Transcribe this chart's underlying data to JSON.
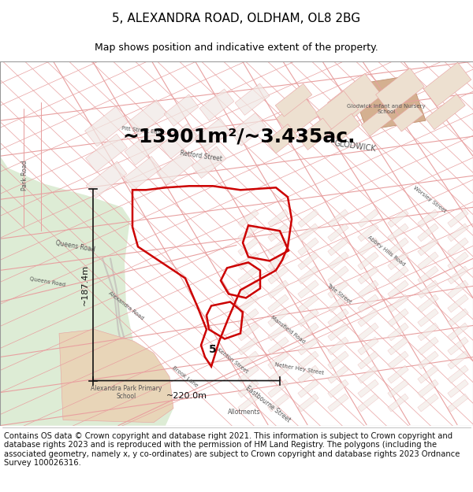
{
  "title": "5, ALEXANDRA ROAD, OLDHAM, OL8 2BG",
  "subtitle": "Map shows position and indicative extent of the property.",
  "area_text": "~13901m²/~3.435ac.",
  "width_label": "~220.0m",
  "height_label": "~187.4m",
  "property_label": "5",
  "footer_text": "Contains OS data © Crown copyright and database right 2021. This information is subject to Crown copyright and database rights 2023 and is reproduced with the permission of HM Land Registry. The polygons (including the associated geometry, namely x, y co-ordinates) are subject to Crown copyright and database rights 2023 Ordnance Survey 100026316.",
  "map_bg": "#f7f4f0",
  "park_color": "#ddecd5",
  "school_fill": "#e8d5b8",
  "street_color": "#e8a0a0",
  "street_lw": 0.5,
  "building_fill": "#f0e8e0",
  "property_edge": "#cc0000",
  "property_lw": 1.8,
  "title_fontsize": 11,
  "subtitle_fontsize": 9,
  "area_fontsize": 18,
  "footer_fontsize": 7.2,
  "label_color": "#555555",
  "dim_color": "#111111"
}
